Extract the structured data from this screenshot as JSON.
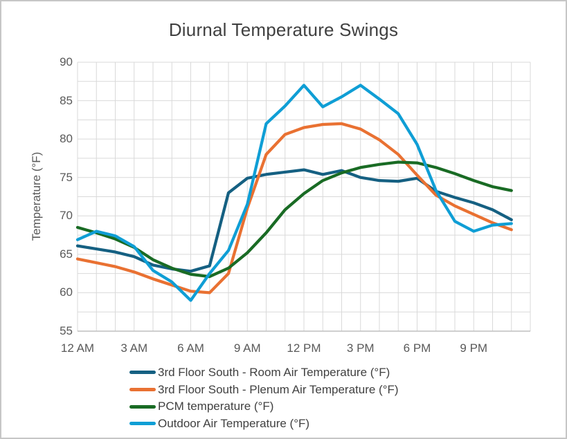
{
  "chart_data": {
    "type": "line",
    "title": "Diurnal Temperature Swings",
    "ylabel": "Temperature (°F)",
    "xlabel": "",
    "ylim": [
      55,
      90
    ],
    "y_tick_step": 5,
    "y_gridline_step": 2.5,
    "y_tick_labels": [
      "90",
      "85",
      "80",
      "75",
      "70",
      "65",
      "60",
      "55"
    ],
    "x_hours_span": 24,
    "x_gridline_step_hours": 1,
    "x_tick_labels": [
      "12 AM",
      "3 AM",
      "6 AM",
      "9 AM",
      "12 PM",
      "3 PM",
      "6 PM",
      "9 PM"
    ],
    "x_tick_every_hours": 3,
    "grid": true,
    "legend_position": "bottom-left",
    "series": [
      {
        "name": "3rd Floor South - Room Air Temperature (°F)",
        "color": "#156082",
        "values": [
          66.1,
          65.7,
          65.3,
          64.7,
          63.6,
          63.1,
          62.8,
          63.5,
          73.0,
          74.9,
          75.4,
          75.7,
          76.0,
          75.4,
          75.9,
          75.0,
          74.6,
          74.5,
          74.9,
          73.2,
          72.4,
          71.7,
          70.8,
          69.5
        ]
      },
      {
        "name": "3rd Floor South - Plenum Air Temperature (°F)",
        "color": "#E97132",
        "values": [
          64.4,
          63.9,
          63.4,
          62.7,
          61.8,
          61.0,
          60.2,
          60.0,
          62.5,
          71.0,
          78.0,
          80.6,
          81.5,
          81.9,
          82.0,
          81.3,
          79.9,
          78.0,
          75.3,
          72.7,
          71.3,
          70.2,
          69.1,
          68.2
        ]
      },
      {
        "name": "PCM temperature (°F)",
        "color": "#196B24",
        "values": [
          68.5,
          67.8,
          67.0,
          65.9,
          64.3,
          63.2,
          62.4,
          62.1,
          63.2,
          65.2,
          67.8,
          70.8,
          72.9,
          74.6,
          75.6,
          76.3,
          76.7,
          77.0,
          76.9,
          76.3,
          75.5,
          74.6,
          73.8,
          73.3
        ]
      },
      {
        "name": "Outdoor Air Temperature (°F)",
        "color": "#0F9ED5",
        "values": [
          66.9,
          68.0,
          67.4,
          66.0,
          62.9,
          61.4,
          59.0,
          62.5,
          65.5,
          71.5,
          82.0,
          84.3,
          87.0,
          84.2,
          85.5,
          87.0,
          85.2,
          83.3,
          79.3,
          73.3,
          69.3,
          68.0,
          68.8,
          69.0
        ]
      }
    ]
  },
  "styles": {
    "accent_colors": [
      "#156082",
      "#E97132",
      "#196B24",
      "#0F9ED5"
    ],
    "title_text_color": "#404040",
    "axis_text_color": "#595959",
    "gridline_color": "#D9D9D9",
    "axis_line_color": "#BFBFBF",
    "background_color": "#FFFFFF",
    "frame_border_color": "#C6C6C6"
  }
}
